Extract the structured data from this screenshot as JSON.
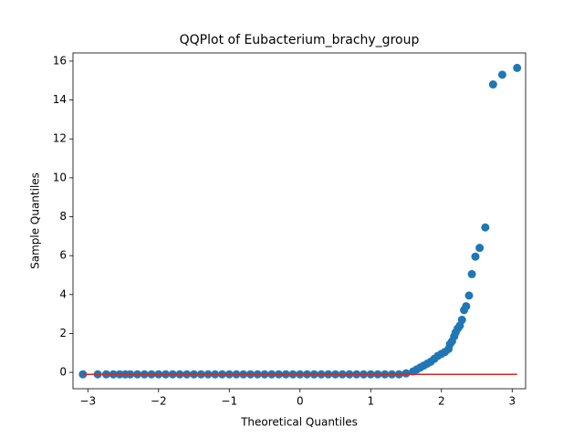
{
  "chart_data": {
    "type": "scatter",
    "title": "QQPlot of Eubacterium_brachy_group",
    "xlabel": "Theoretical Quantiles",
    "ylabel": "Sample Quantiles",
    "xlim": [
      -3.21,
      3.19
    ],
    "ylim": [
      -0.84,
      16.42
    ],
    "xticks": [
      {
        "value": -3,
        "label": "−3"
      },
      {
        "value": -2,
        "label": "−2"
      },
      {
        "value": -1,
        "label": "−1"
      },
      0,
      1,
      2,
      3
    ],
    "yticks": [
      0,
      2,
      4,
      6,
      8,
      10,
      12,
      14,
      16
    ],
    "series": [
      {
        "color": "#1f77b4",
        "x": [
          -3.07,
          -2.86,
          -2.74,
          -2.64,
          -2.55,
          -2.47,
          -2.4,
          -2.3,
          -2.2,
          -2.1,
          -2.0,
          -1.9,
          -1.8,
          -1.7,
          -1.6,
          -1.5,
          -1.4,
          -1.3,
          -1.2,
          -1.1,
          -1.0,
          -0.9,
          -0.8,
          -0.7,
          -0.6,
          -0.5,
          -0.4,
          -0.3,
          -0.2,
          -0.1,
          0,
          0.1,
          0.2,
          0.3,
          0.4,
          0.5,
          0.6,
          0.7,
          0.8,
          0.9,
          1.0,
          1.1,
          1.2,
          1.3,
          1.4,
          1.5,
          1.6,
          1.65,
          1.7,
          1.75,
          1.8,
          1.85,
          1.9,
          1.95,
          2.0,
          2.05,
          2.1,
          2.12,
          2.15,
          2.18,
          2.2,
          2.23,
          2.26,
          2.29,
          2.32,
          2.35,
          2.39,
          2.43,
          2.48,
          2.54,
          2.62,
          2.73,
          2.86,
          3.07
        ],
        "values": [
          -0.1,
          -0.1,
          -0.1,
          -0.1,
          -0.1,
          -0.1,
          -0.1,
          -0.1,
          -0.1,
          -0.1,
          -0.1,
          -0.1,
          -0.1,
          -0.1,
          -0.1,
          -0.1,
          -0.1,
          -0.1,
          -0.1,
          -0.1,
          -0.1,
          -0.1,
          -0.1,
          -0.1,
          -0.1,
          -0.1,
          -0.1,
          -0.1,
          -0.1,
          -0.1,
          -0.1,
          -0.1,
          -0.1,
          -0.1,
          -0.1,
          -0.1,
          -0.1,
          -0.1,
          -0.1,
          -0.1,
          -0.1,
          -0.1,
          -0.1,
          -0.1,
          -0.1,
          -0.05,
          0.05,
          0.15,
          0.25,
          0.35,
          0.45,
          0.55,
          0.7,
          0.85,
          0.95,
          1.05,
          1.2,
          1.45,
          1.6,
          1.85,
          2.05,
          2.25,
          2.4,
          2.7,
          3.2,
          3.4,
          3.95,
          5.05,
          5.95,
          6.4,
          7.45,
          14.8,
          15.3,
          15.65
        ]
      }
    ],
    "fit_line": {
      "color": "#d62728",
      "x": [
        -3.07,
        3.07
      ],
      "values": [
        -0.1,
        -0.1
      ]
    }
  }
}
